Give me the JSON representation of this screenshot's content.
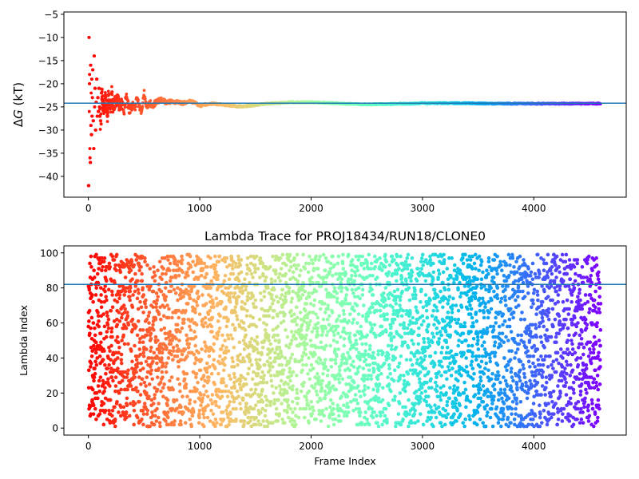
{
  "chart_data": [
    {
      "type": "scatter",
      "title": "",
      "xlabel": "",
      "ylabel": "ΔG (kT)",
      "ylabel_italic_part": "G",
      "xlim": [
        -220,
        4830
      ],
      "ylim": [
        -44.5,
        -4.5
      ],
      "xticks": [
        0,
        1000,
        2000,
        3000,
        4000
      ],
      "xtick_labels": [
        "0",
        "1000",
        "2000",
        "3000",
        "4000"
      ],
      "yticks": [
        -40,
        -35,
        -30,
        -25,
        -20,
        -15,
        -10,
        -5
      ],
      "ytick_labels": [
        "−40",
        "−35",
        "−30",
        "−25",
        "−20",
        "−15",
        "−10",
        "−5"
      ],
      "hline": -24.2,
      "hline_color": "#1f77b4",
      "colormap": "rainbow",
      "grid": false,
      "x_range": [
        0,
        4600
      ],
      "series_description": "Cumulative free energy estimate converging from wide scatter near frame 0 to about -24.3 kT",
      "points": [
        [
          2,
          -42
        ],
        [
          5,
          -10
        ],
        [
          8,
          -26
        ],
        [
          10,
          -20
        ],
        [
          12,
          -18
        ],
        [
          14,
          -34
        ],
        [
          16,
          -36
        ],
        [
          18,
          -37
        ],
        [
          20,
          -16
        ],
        [
          22,
          -29
        ],
        [
          25,
          -22
        ],
        [
          28,
          -31
        ],
        [
          30,
          -19
        ],
        [
          33,
          -27
        ],
        [
          36,
          -23
        ],
        [
          40,
          -17
        ],
        [
          44,
          -28
        ],
        [
          48,
          -34
        ],
        [
          52,
          -14
        ],
        [
          56,
          -25
        ],
        [
          60,
          -21
        ],
        [
          65,
          -30
        ],
        [
          70,
          -24
        ],
        [
          75,
          -19
        ],
        [
          80,
          -27
        ],
        [
          85,
          -23
        ],
        [
          90,
          -26
        ],
        [
          95,
          -21
        ],
        [
          100,
          -25
        ],
        [
          110,
          -28
        ],
        [
          120,
          -22
        ],
        [
          130,
          -24
        ],
        [
          140,
          -26
        ],
        [
          150,
          -23
        ],
        [
          160,
          -25
        ],
        [
          170,
          -27
        ],
        [
          180,
          -23
        ],
        [
          190,
          -24
        ],
        [
          200,
          -26
        ],
        [
          210,
          -22
        ],
        [
          220,
          -25
        ],
        [
          240,
          -24
        ],
        [
          260,
          -23
        ],
        [
          280,
          -25
        ],
        [
          300,
          -24
        ],
        [
          320,
          -26
        ],
        [
          340,
          -23
        ],
        [
          360,
          -25
        ],
        [
          380,
          -26
        ],
        [
          400,
          -24
        ],
        [
          420,
          -25
        ],
        [
          440,
          -23
        ],
        [
          460,
          -25
        ],
        [
          480,
          -26
        ],
        [
          500,
          -22
        ],
        [
          520,
          -25
        ],
        [
          550,
          -24
        ],
        [
          580,
          -25
        ],
        [
          600,
          -24
        ],
        [
          650,
          -23.5
        ],
        [
          700,
          -24
        ],
        [
          750,
          -23.8
        ],
        [
          800,
          -24
        ],
        [
          850,
          -24.2
        ],
        [
          900,
          -23.8
        ],
        [
          950,
          -24
        ],
        [
          1000,
          -24.8
        ],
        [
          1050,
          -24.5
        ],
        [
          1100,
          -24.3
        ],
        [
          1200,
          -24.5
        ],
        [
          1300,
          -24.8
        ],
        [
          1400,
          -24.9
        ],
        [
          1500,
          -24.6
        ],
        [
          1600,
          -24.3
        ],
        [
          1700,
          -24.2
        ],
        [
          1800,
          -24
        ],
        [
          1900,
          -24
        ],
        [
          2000,
          -24
        ],
        [
          2100,
          -24.1
        ],
        [
          2200,
          -24.2
        ],
        [
          2300,
          -24.3
        ],
        [
          2400,
          -24.4
        ],
        [
          2500,
          -24.5
        ],
        [
          2600,
          -24.4
        ],
        [
          2700,
          -24.4
        ],
        [
          2800,
          -24.3
        ],
        [
          2900,
          -24.3
        ],
        [
          3000,
          -24.2
        ],
        [
          3200,
          -24.2
        ],
        [
          3400,
          -24.2
        ],
        [
          3600,
          -24.3
        ],
        [
          3800,
          -24.3
        ],
        [
          4000,
          -24.3
        ],
        [
          4200,
          -24.3
        ],
        [
          4400,
          -24.3
        ],
        [
          4600,
          -24.3
        ]
      ]
    },
    {
      "type": "scatter",
      "title": "Lambda Trace for PROJ18434/RUN18/CLONE0",
      "xlabel": "Frame Index",
      "ylabel": "Lambda Index",
      "xlim": [
        -220,
        4830
      ],
      "ylim": [
        -4,
        104
      ],
      "xticks": [
        0,
        1000,
        2000,
        3000,
        4000
      ],
      "xtick_labels": [
        "0",
        "1000",
        "2000",
        "3000",
        "4000"
      ],
      "yticks": [
        0,
        20,
        40,
        60,
        80,
        100
      ],
      "ytick_labels": [
        "0",
        "20",
        "40",
        "60",
        "80",
        "100"
      ],
      "hline": 82,
      "hline_color": "#1f77b4",
      "colormap": "rainbow",
      "grid": false,
      "x_range": [
        0,
        4600
      ],
      "y_range": [
        1,
        99
      ],
      "n_points": 4600,
      "series_description": "Lambda index visited at each frame, uniformly spread between 1 and 99"
    }
  ]
}
